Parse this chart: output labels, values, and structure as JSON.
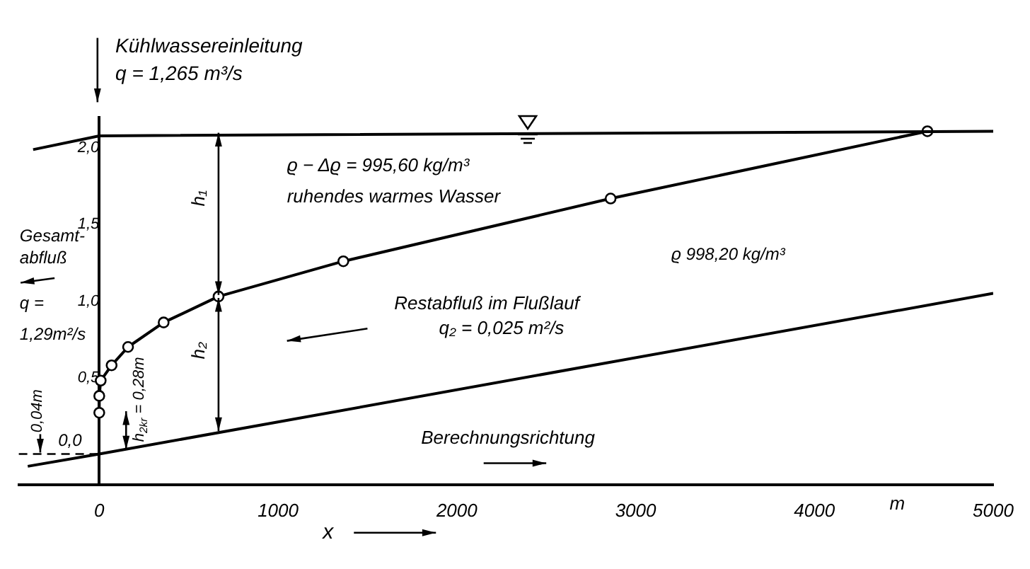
{
  "chart_data": {
    "type": "line",
    "xlabel": "x",
    "xlim": [
      -450,
      5000
    ],
    "xticks": [
      0,
      1000,
      2000,
      3000,
      4000,
      5000
    ],
    "ylim": [
      -0.2,
      2.2
    ],
    "yticks": [
      {
        "value": 0.5,
        "label": "0,5"
      },
      {
        "value": 1,
        "label": "1,0"
      },
      {
        "value": 1.5,
        "label": "1,5"
      },
      {
        "value": 2,
        "label": "2,0"
      }
    ],
    "grid": false,
    "legend": false,
    "line_style": "solid",
    "ref_lines": [
      {
        "axis": "y",
        "value": 0,
        "label": "0,0",
        "line_style": "dashed"
      }
    ],
    "series": [
      {
        "type": "line",
        "color": "#000000",
        "marker": "none",
        "x": [
          -370,
          0,
          5000
        ],
        "values": [
          1.99,
          2.08,
          2.11
        ]
      },
      {
        "type": "line",
        "color": "#000000",
        "marker": "circle",
        "x": [
          0,
          0,
          8,
          69,
          161,
          360,
          667,
          1365,
          2860,
          4632
        ],
        "values": [
          0.27,
          0.38,
          0.48,
          0.58,
          0.7,
          0.86,
          1.03,
          1.26,
          1.67,
          2.11
        ]
      },
      {
        "type": "line",
        "color": "#000000",
        "marker": "none",
        "x": [
          -400,
          0,
          5000
        ],
        "values": [
          -0.08,
          0,
          1.05
        ]
      }
    ],
    "annotations": [
      "Kühlwassereinleitung",
      "q = 1,265 m³/s",
      "ϱ − Δϱ = 995,60 kg/m³",
      "ruhendes warmes Wasser",
      "ϱ 998,20 kg/m³",
      "Restabfluß im Flußlauf",
      "q₂ = 0,025 m²/s",
      "Berechnungsrichtung",
      "Gesamt-",
      "abfluß",
      "q =",
      "1,29m²/s",
      "h₁",
      "h₂",
      {
        "text": "h$_{2kr}$ = 0,28m",
        "x": 150,
        "y": 0.03
      },
      "0,04m",
      "m"
    ]
  }
}
